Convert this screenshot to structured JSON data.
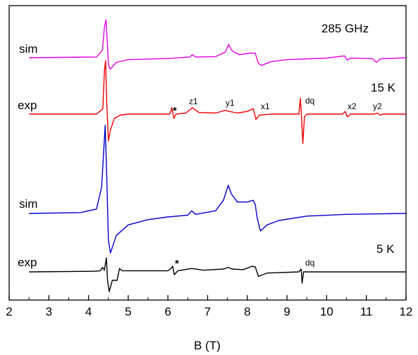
{
  "chart_data": {
    "type": "line",
    "title": "",
    "xlabel": "B (T)",
    "ylabel": "",
    "xlim": [
      2,
      12
    ],
    "xticks": [
      "2",
      "3",
      "4",
      "5",
      "6",
      "7",
      "8",
      "9",
      "10",
      "11",
      "12"
    ],
    "grid": false,
    "annotations": {
      "freq_285": "285 GHz",
      "temp_15": "15 K",
      "temp_5": "5 K"
    },
    "series": [
      {
        "name": "sim",
        "group": "15 K",
        "color": "#e000e0",
        "baseline": 0,
        "points": [
          [
            2.5,
            0
          ],
          [
            4.2,
            0.02
          ],
          [
            4.35,
            0.2
          ],
          [
            4.4,
            0.8
          ],
          [
            4.44,
            1.0
          ],
          [
            4.48,
            0.3
          ],
          [
            4.5,
            -0.2
          ],
          [
            4.55,
            -0.3
          ],
          [
            4.7,
            -0.12
          ],
          [
            5.0,
            -0.05
          ],
          [
            6.0,
            -0.02
          ],
          [
            6.55,
            0.02
          ],
          [
            6.62,
            0.08
          ],
          [
            6.7,
            0.02
          ],
          [
            7.2,
            0.03
          ],
          [
            7.45,
            0.15
          ],
          [
            7.53,
            0.35
          ],
          [
            7.62,
            0.18
          ],
          [
            7.8,
            0.08
          ],
          [
            8.05,
            0.12
          ],
          [
            8.2,
            0.12
          ],
          [
            8.28,
            -0.15
          ],
          [
            8.36,
            -0.2
          ],
          [
            8.6,
            -0.1
          ],
          [
            9.0,
            -0.05
          ],
          [
            10.0,
            -0.01
          ],
          [
            10.45,
            0.05
          ],
          [
            10.52,
            -0.06
          ],
          [
            10.6,
            -0.01
          ],
          [
            11.15,
            -0.02
          ],
          [
            11.25,
            -0.12
          ],
          [
            11.35,
            -0.03
          ],
          [
            12,
            0
          ]
        ]
      },
      {
        "name": "exp",
        "group": "15 K",
        "color": "#ee0000",
        "baseline": 0,
        "points": [
          [
            2.5,
            0
          ],
          [
            4.2,
            0
          ],
          [
            4.3,
            0.06
          ],
          [
            4.36,
            0.1
          ],
          [
            4.4,
            0.8
          ],
          [
            4.43,
            1.0
          ],
          [
            4.46,
            0.2
          ],
          [
            4.5,
            -0.5
          ],
          [
            4.55,
            -0.3
          ],
          [
            4.65,
            -0.08
          ],
          [
            4.8,
            -0.02
          ],
          [
            5.0,
            0
          ],
          [
            6.05,
            0
          ],
          [
            6.1,
            0.12
          ],
          [
            6.15,
            -0.08
          ],
          [
            6.2,
            0
          ],
          [
            6.45,
            0.02
          ],
          [
            6.62,
            0.12
          ],
          [
            6.78,
            0.03
          ],
          [
            7.2,
            0.02
          ],
          [
            7.45,
            0.07
          ],
          [
            7.55,
            0.05
          ],
          [
            7.75,
            0.02
          ],
          [
            8.0,
            0.05
          ],
          [
            8.15,
            0.1
          ],
          [
            8.22,
            -0.1
          ],
          [
            8.3,
            -0.02
          ],
          [
            8.6,
            0
          ],
          [
            9.3,
            0
          ],
          [
            9.34,
            0.3
          ],
          [
            9.37,
            -0.1
          ],
          [
            9.4,
            -0.55
          ],
          [
            9.44,
            -0.05
          ],
          [
            9.5,
            0
          ],
          [
            10.4,
            0
          ],
          [
            10.47,
            0.05
          ],
          [
            10.52,
            -0.05
          ],
          [
            10.6,
            0
          ],
          [
            11.2,
            0
          ],
          [
            11.28,
            0.02
          ],
          [
            11.35,
            -0.02
          ],
          [
            11.4,
            0
          ],
          [
            12,
            0
          ]
        ]
      },
      {
        "name": "sim",
        "group": "5 K",
        "color": "#0000cc",
        "baseline": 0,
        "points": [
          [
            2.5,
            0
          ],
          [
            3.8,
            0.01
          ],
          [
            4.2,
            0.05
          ],
          [
            4.33,
            0.3
          ],
          [
            4.42,
            1.0
          ],
          [
            4.46,
            0.4
          ],
          [
            4.5,
            -0.3
          ],
          [
            4.55,
            -0.45
          ],
          [
            4.7,
            -0.25
          ],
          [
            5.0,
            -0.13
          ],
          [
            5.5,
            -0.07
          ],
          [
            6.0,
            -0.04
          ],
          [
            6.5,
            -0.02
          ],
          [
            6.6,
            0.03
          ],
          [
            6.7,
            -0.01
          ],
          [
            7.2,
            0.03
          ],
          [
            7.4,
            0.15
          ],
          [
            7.52,
            0.32
          ],
          [
            7.6,
            0.22
          ],
          [
            7.75,
            0.13
          ],
          [
            8.0,
            0.13
          ],
          [
            8.15,
            0.15
          ],
          [
            8.2,
            0.1
          ],
          [
            8.25,
            -0.05
          ],
          [
            8.33,
            -0.2
          ],
          [
            8.5,
            -0.13
          ],
          [
            8.8,
            -0.08
          ],
          [
            9.5,
            -0.03
          ],
          [
            10.5,
            -0.01
          ],
          [
            12,
            0
          ]
        ]
      },
      {
        "name": "exp",
        "group": "5 K",
        "color": "#000000",
        "baseline": 0,
        "points": [
          [
            2.5,
            0
          ],
          [
            4.1,
            0.01
          ],
          [
            4.3,
            0.02
          ],
          [
            4.35,
            0.08
          ],
          [
            4.4,
            0.03
          ],
          [
            4.45,
            0.25
          ],
          [
            4.48,
            -0.15
          ],
          [
            4.52,
            -0.35
          ],
          [
            4.6,
            -0.15
          ],
          [
            4.72,
            -0.15
          ],
          [
            4.78,
            0.06
          ],
          [
            4.85,
            0.02
          ],
          [
            6.0,
            0.02
          ],
          [
            6.08,
            0.06
          ],
          [
            6.12,
            0.1
          ],
          [
            6.16,
            -0.05
          ],
          [
            6.25,
            0.02
          ],
          [
            6.6,
            0.06
          ],
          [
            6.9,
            0.03
          ],
          [
            7.4,
            0.05
          ],
          [
            7.52,
            0.08
          ],
          [
            7.62,
            0.05
          ],
          [
            7.9,
            0.04
          ],
          [
            8.12,
            0.1
          ],
          [
            8.2,
            0.09
          ],
          [
            8.28,
            -0.08
          ],
          [
            8.5,
            -0.02
          ],
          [
            9.3,
            0
          ],
          [
            9.36,
            0.05
          ],
          [
            9.38,
            -0.2
          ],
          [
            9.42,
            0
          ],
          [
            12,
            0
          ]
        ]
      }
    ],
    "labels": {
      "sim": "sim",
      "exp": "exp",
      "z1": "z1",
      "y1": "y1",
      "x1": "x1",
      "dq": "dq",
      "x2": "x2",
      "y2": "y2",
      "star": "*"
    }
  }
}
